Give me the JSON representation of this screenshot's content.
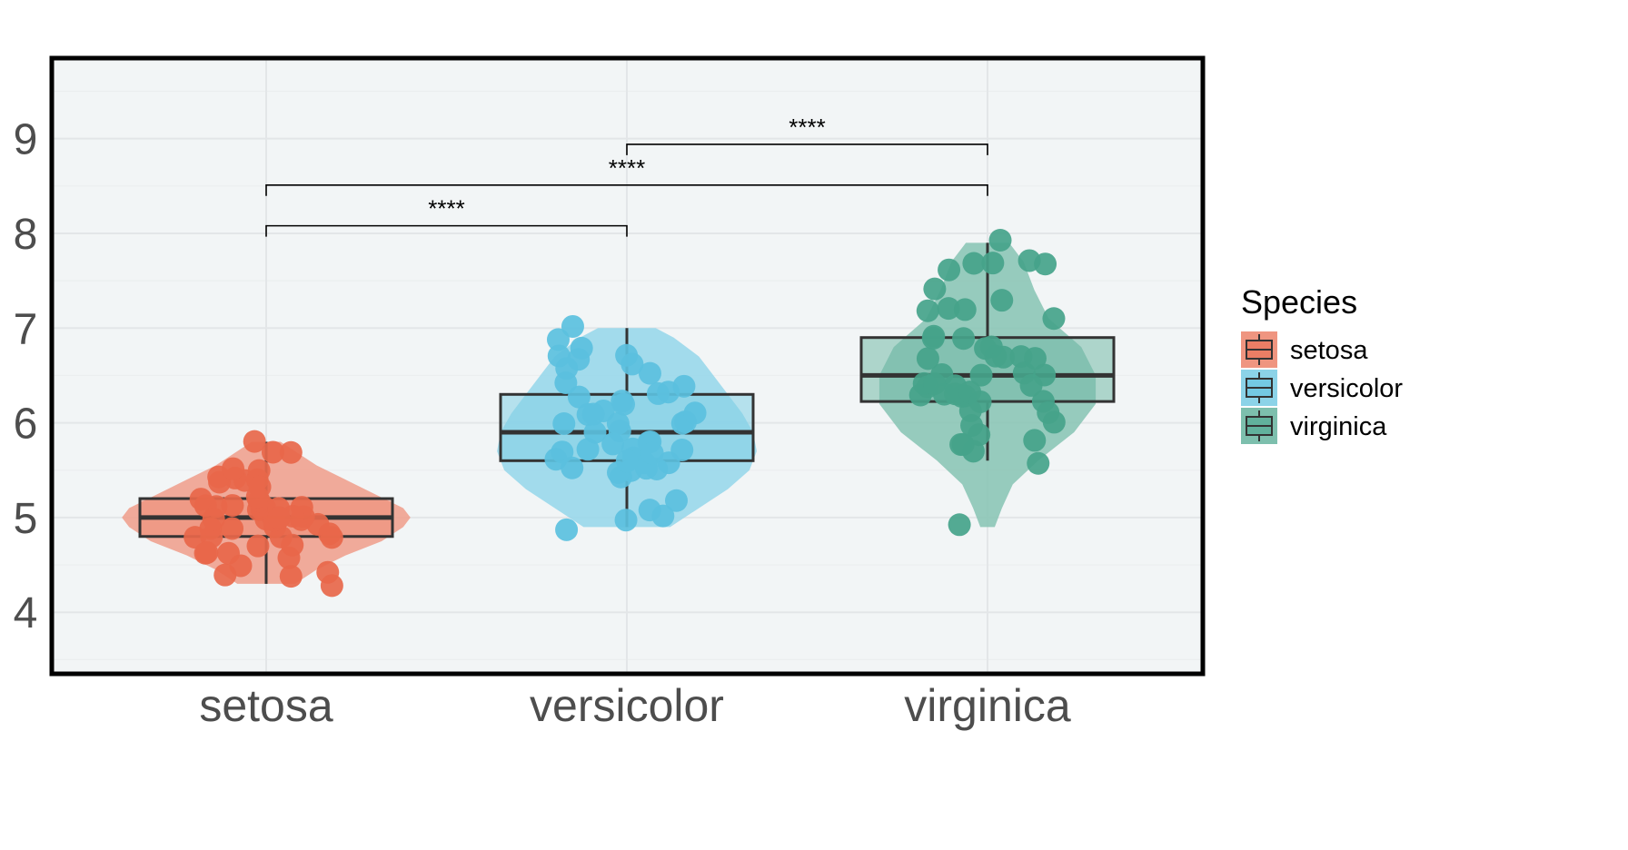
{
  "chart_data": {
    "type": "violin-box-jitter",
    "title": "",
    "xlabel": "",
    "ylabel": "",
    "ylim": [
      3.35,
      9.85
    ],
    "yticks": [
      4,
      5,
      6,
      7,
      8,
      9
    ],
    "categories": [
      "setosa",
      "versicolor",
      "virginica"
    ],
    "colors": [
      "#E8674A",
      "#5BC0DE",
      "#45A38A"
    ],
    "grid": true,
    "legend": {
      "title": "Species",
      "position": "right",
      "entries": [
        "setosa",
        "versicolor",
        "virginica"
      ]
    },
    "boxes": [
      {
        "name": "setosa",
        "min": 4.3,
        "q1": 4.8,
        "median": 5.0,
        "q3": 5.2,
        "max": 5.8
      },
      {
        "name": "versicolor",
        "min": 4.9,
        "q1": 5.6,
        "median": 5.9,
        "q3": 6.3,
        "max": 7.0
      },
      {
        "name": "virginica",
        "min": 5.6,
        "q1": 6.225,
        "median": 6.5,
        "q3": 6.9,
        "max": 7.9
      }
    ],
    "violin_profiles": [
      {
        "name": "setosa",
        "y": [
          4.3,
          4.45,
          4.6,
          4.75,
          4.9,
          5.0,
          5.1,
          5.25,
          5.4,
          5.55,
          5.7,
          5.8
        ],
        "half_width": [
          0.08,
          0.14,
          0.22,
          0.32,
          0.38,
          0.4,
          0.38,
          0.3,
          0.22,
          0.14,
          0.08,
          0.04
        ]
      },
      {
        "name": "versicolor",
        "y": [
          4.9,
          5.1,
          5.3,
          5.5,
          5.7,
          5.9,
          6.1,
          6.3,
          6.5,
          6.7,
          6.9,
          7.0
        ],
        "half_width": [
          0.12,
          0.2,
          0.28,
          0.34,
          0.36,
          0.35,
          0.32,
          0.28,
          0.24,
          0.2,
          0.13,
          0.08
        ]
      },
      {
        "name": "virginica",
        "y": [
          4.9,
          5.1,
          5.35,
          5.6,
          5.9,
          6.2,
          6.5,
          6.8,
          7.1,
          7.4,
          7.7,
          7.9
        ],
        "half_width": [
          0.02,
          0.04,
          0.07,
          0.14,
          0.24,
          0.3,
          0.3,
          0.26,
          0.17,
          0.13,
          0.1,
          0.06
        ]
      }
    ],
    "points": [
      {
        "name": "setosa",
        "values": [
          5.1,
          4.9,
          4.7,
          4.6,
          5.0,
          5.4,
          4.6,
          5.0,
          4.4,
          4.9,
          5.4,
          4.8,
          4.8,
          4.3,
          5.8,
          5.7,
          5.4,
          5.1,
          5.7,
          5.1,
          5.4,
          5.1,
          4.6,
          5.1,
          4.8,
          5.0,
          5.0,
          5.2,
          5.2,
          4.7,
          4.8,
          5.4,
          5.2,
          5.5,
          4.9,
          5.0,
          5.5,
          4.9,
          4.4,
          5.1,
          5.0,
          4.5,
          4.4,
          5.0,
          5.1,
          4.8,
          5.1,
          4.6,
          5.3,
          5.0
        ]
      },
      {
        "name": "versicolor",
        "values": [
          7.0,
          6.4,
          6.9,
          5.5,
          6.5,
          5.7,
          6.3,
          4.9,
          6.6,
          5.2,
          5.0,
          5.9,
          6.0,
          6.1,
          5.6,
          6.7,
          5.6,
          5.8,
          6.2,
          5.6,
          5.9,
          6.1,
          6.3,
          6.1,
          6.4,
          6.6,
          6.8,
          6.7,
          6.0,
          5.7,
          5.5,
          5.5,
          5.8,
          6.0,
          5.4,
          6.0,
          6.7,
          6.3,
          5.6,
          5.5,
          5.5,
          6.1,
          5.8,
          5.0,
          5.6,
          5.7,
          5.7,
          6.2,
          5.1,
          5.7
        ]
      },
      {
        "name": "virginica",
        "values": [
          6.3,
          5.8,
          7.1,
          6.3,
          6.5,
          7.6,
          4.9,
          7.3,
          6.7,
          7.2,
          6.5,
          6.4,
          6.8,
          5.7,
          5.8,
          6.4,
          6.5,
          7.7,
          7.7,
          6.0,
          6.9,
          5.6,
          7.7,
          6.3,
          6.7,
          7.2,
          6.2,
          6.1,
          6.4,
          7.2,
          7.4,
          7.9,
          6.4,
          6.3,
          6.1,
          7.7,
          6.3,
          6.4,
          6.0,
          6.9,
          6.7,
          6.9,
          5.8,
          6.8,
          6.7,
          6.7,
          6.3,
          6.5,
          6.2,
          5.9
        ]
      }
    ],
    "comparisons": [
      {
        "group1": "setosa",
        "group2": "versicolor",
        "y": 8.08,
        "label": "****"
      },
      {
        "group1": "setosa",
        "group2": "virginica",
        "y": 8.51,
        "label": "****"
      },
      {
        "group1": "versicolor",
        "group2": "virginica",
        "y": 8.94,
        "label": "****"
      }
    ]
  }
}
